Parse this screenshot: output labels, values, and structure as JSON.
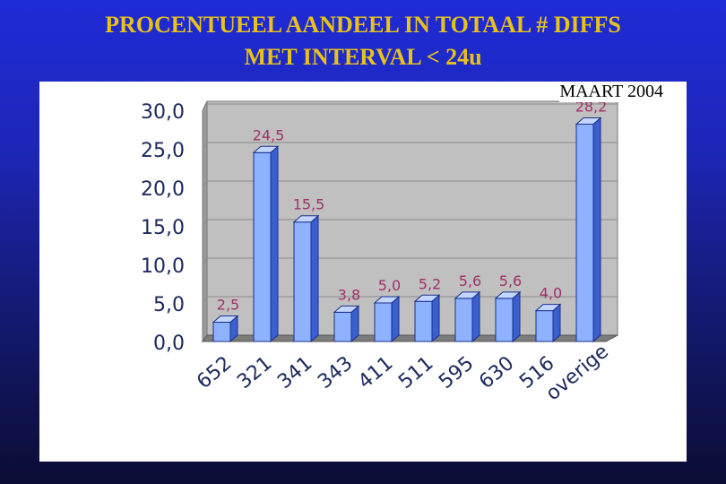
{
  "slide": {
    "title_line1": "PROCENTUEEL AANDEEL IN TOTAAL # DIFFS",
    "title_line2": "MET INTERVAL < 24u"
  },
  "colors": {
    "background_top": "#1f2bd6",
    "background_bottom": "#0b0d33",
    "title": "#e8c21a",
    "bar_face": "#8fb2ff",
    "bar_top": "#c4d6ff",
    "bar_side": "#3a5fcf",
    "data_label": "#a0306a",
    "plot_wall": "#c0c0c0"
  },
  "chart_data": {
    "type": "bar",
    "subtitle": "MAART 2004",
    "categories": [
      "652",
      "321",
      "341",
      "343",
      "411",
      "511",
      "595",
      "630",
      "516",
      "overige"
    ],
    "values": [
      2.5,
      24.5,
      15.5,
      3.8,
      5.0,
      5.2,
      5.6,
      5.6,
      4.0,
      28.2
    ],
    "data_labels": [
      "2,5",
      "24,5",
      "15,5",
      "3,8",
      "5,0",
      "5,2",
      "5,6",
      "5,6",
      "4,0",
      "28,2"
    ],
    "y_ticks": [
      "0,0",
      "5,0",
      "10,0",
      "15,0",
      "20,0",
      "25,0",
      "30,0"
    ],
    "ylim": [
      0,
      30
    ],
    "xlabel": "",
    "ylabel": "",
    "grid": true,
    "legend": "none",
    "style": "3d-column"
  }
}
